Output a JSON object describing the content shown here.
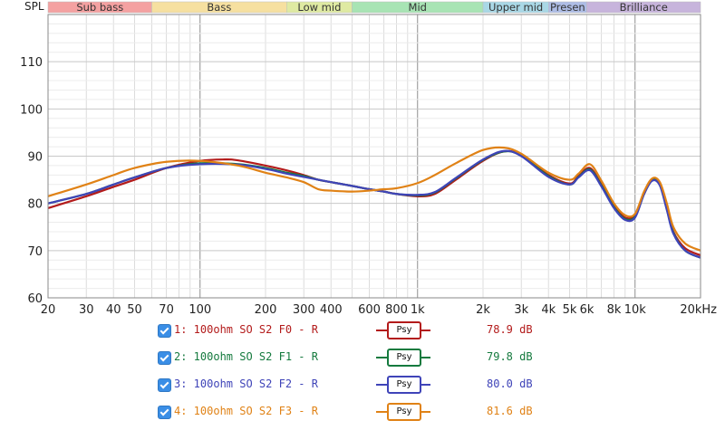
{
  "chart_data": {
    "type": "line",
    "ylabel": "SPL",
    "x_scale": "log",
    "xlim": [
      20,
      20000
    ],
    "ylim": [
      60,
      120
    ],
    "y_ticks": [
      60,
      70,
      80,
      90,
      100,
      110
    ],
    "x_ticks": [
      {
        "value": 20,
        "label": "20"
      },
      {
        "value": 30,
        "label": "30"
      },
      {
        "value": 40,
        "label": "40"
      },
      {
        "value": 50,
        "label": "50"
      },
      {
        "value": 70,
        "label": "70"
      },
      {
        "value": 100,
        "label": "100"
      },
      {
        "value": 200,
        "label": "200"
      },
      {
        "value": 300,
        "label": "300"
      },
      {
        "value": 400,
        "label": "400"
      },
      {
        "value": 600,
        "label": "600"
      },
      {
        "value": 800,
        "label": "800"
      },
      {
        "value": 1000,
        "label": "1k"
      },
      {
        "value": 2000,
        "label": "2k"
      },
      {
        "value": 3000,
        "label": "3k"
      },
      {
        "value": 4000,
        "label": "4k"
      },
      {
        "value": 5000,
        "label": "5k"
      },
      {
        "value": 6000,
        "label": "6k"
      },
      {
        "value": 8000,
        "label": "8k"
      },
      {
        "value": 10000,
        "label": "10k"
      },
      {
        "value": 20000,
        "label": "20kHz"
      }
    ],
    "bands": [
      {
        "label": "Sub bass",
        "from": 20,
        "to": 60,
        "color": "#f4a1a1"
      },
      {
        "label": "Bass",
        "from": 60,
        "to": 250,
        "color": "#f6e0a0"
      },
      {
        "label": "Low mid",
        "from": 250,
        "to": 500,
        "color": "#dfeaa2"
      },
      {
        "label": "Mid",
        "from": 500,
        "to": 2000,
        "color": "#a8e4b4"
      },
      {
        "label": "Upper mid",
        "from": 2000,
        "to": 4000,
        "color": "#a9d8e6"
      },
      {
        "label": "Presen",
        "from": 4000,
        "to": 6000,
        "color": "#aebde6"
      },
      {
        "label": "Brilliance",
        "from": 6000,
        "to": 20000,
        "color": "#c7b4dc"
      }
    ],
    "grid": true,
    "legend_position": "bottom",
    "series": [
      {
        "name": "1: 100ohm SO S2 F0 - R",
        "color": "#b31b1b",
        "level": "78.9 dB",
        "points": [
          [
            20,
            79
          ],
          [
            30,
            81.5
          ],
          [
            40,
            83.5
          ],
          [
            50,
            85
          ],
          [
            70,
            87.5
          ],
          [
            100,
            89
          ],
          [
            130,
            89.3
          ],
          [
            150,
            89.1
          ],
          [
            200,
            88
          ],
          [
            250,
            87
          ],
          [
            300,
            86
          ],
          [
            350,
            85
          ],
          [
            400,
            84.5
          ],
          [
            500,
            83.7
          ],
          [
            600,
            83
          ],
          [
            700,
            82.5
          ],
          [
            800,
            82
          ],
          [
            1000,
            81.5
          ],
          [
            1200,
            82
          ],
          [
            1500,
            85
          ],
          [
            2000,
            89
          ],
          [
            2500,
            91
          ],
          [
            3000,
            90.2
          ],
          [
            4000,
            86
          ],
          [
            5000,
            84.2
          ],
          [
            5500,
            85.8
          ],
          [
            6200,
            87.5
          ],
          [
            7000,
            84
          ],
          [
            8000,
            79.5
          ],
          [
            9000,
            77
          ],
          [
            10000,
            77.5
          ],
          [
            11000,
            82
          ],
          [
            12000,
            85
          ],
          [
            13000,
            84
          ],
          [
            14000,
            79
          ],
          [
            15000,
            74
          ],
          [
            17000,
            70.5
          ],
          [
            20000,
            69
          ]
        ]
      },
      {
        "name": "2: 100ohm SO S2 F1 - R",
        "color": "#157a3e",
        "level": "79.8 dB",
        "points": [
          [
            20,
            80
          ],
          [
            30,
            82
          ],
          [
            40,
            84
          ],
          [
            50,
            85.5
          ],
          [
            70,
            87.5
          ],
          [
            100,
            88.5
          ],
          [
            150,
            88.3
          ],
          [
            200,
            87.5
          ],
          [
            250,
            86.5
          ],
          [
            300,
            85.8
          ],
          [
            350,
            85
          ],
          [
            400,
            84.5
          ],
          [
            500,
            83.7
          ],
          [
            600,
            83
          ],
          [
            700,
            82.5
          ],
          [
            800,
            82
          ],
          [
            1000,
            81.7
          ],
          [
            1200,
            82.3
          ],
          [
            1500,
            85.3
          ],
          [
            2000,
            89.2
          ],
          [
            2500,
            91
          ],
          [
            3000,
            90.1
          ],
          [
            4000,
            85.8
          ],
          [
            5000,
            84
          ],
          [
            5500,
            85.6
          ],
          [
            6200,
            87.2
          ],
          [
            7000,
            83.8
          ],
          [
            8000,
            79.2
          ],
          [
            9000,
            76.7
          ],
          [
            10000,
            77.2
          ],
          [
            11000,
            82
          ],
          [
            12000,
            85
          ],
          [
            13000,
            84
          ],
          [
            14000,
            78.8
          ],
          [
            15000,
            73.8
          ],
          [
            17000,
            70
          ],
          [
            20000,
            68.5
          ]
        ]
      },
      {
        "name": "3: 100ohm SO S2 F2 - R",
        "color": "#3f44b8",
        "level": "80.0 dB",
        "points": [
          [
            20,
            80
          ],
          [
            30,
            82
          ],
          [
            40,
            84
          ],
          [
            50,
            85.5
          ],
          [
            70,
            87.5
          ],
          [
            100,
            88.3
          ],
          [
            150,
            88.2
          ],
          [
            200,
            87.3
          ],
          [
            250,
            86.3
          ],
          [
            300,
            85.6
          ],
          [
            350,
            85
          ],
          [
            400,
            84.5
          ],
          [
            500,
            83.7
          ],
          [
            600,
            83
          ],
          [
            700,
            82.5
          ],
          [
            800,
            82
          ],
          [
            1000,
            81.8
          ],
          [
            1200,
            82.4
          ],
          [
            1500,
            85.4
          ],
          [
            2000,
            89.3
          ],
          [
            2500,
            91.1
          ],
          [
            3000,
            90
          ],
          [
            4000,
            85.6
          ],
          [
            5000,
            84
          ],
          [
            5500,
            85.5
          ],
          [
            6200,
            87
          ],
          [
            7000,
            83.6
          ],
          [
            8000,
            79
          ],
          [
            9000,
            76.5
          ],
          [
            10000,
            77
          ],
          [
            11000,
            82
          ],
          [
            12000,
            84.8
          ],
          [
            13000,
            83.8
          ],
          [
            14000,
            78.6
          ],
          [
            15000,
            73.6
          ],
          [
            17000,
            70
          ],
          [
            20000,
            68.5
          ]
        ]
      },
      {
        "name": "4: 100ohm SO S2 F3 - R",
        "color": "#e08216",
        "level": "81.6 dB",
        "points": [
          [
            20,
            81.5
          ],
          [
            30,
            84
          ],
          [
            40,
            86
          ],
          [
            50,
            87.5
          ],
          [
            70,
            88.8
          ],
          [
            100,
            89
          ],
          [
            150,
            88
          ],
          [
            200,
            86.5
          ],
          [
            250,
            85.5
          ],
          [
            300,
            84.5
          ],
          [
            350,
            83
          ],
          [
            400,
            82.7
          ],
          [
            500,
            82.5
          ],
          [
            600,
            82.7
          ],
          [
            700,
            83
          ],
          [
            800,
            83.2
          ],
          [
            1000,
            84.3
          ],
          [
            1200,
            86
          ],
          [
            1500,
            88.5
          ],
          [
            2000,
            91.3
          ],
          [
            2500,
            91.8
          ],
          [
            3000,
            90.5
          ],
          [
            4000,
            86.5
          ],
          [
            5000,
            85
          ],
          [
            5500,
            86.3
          ],
          [
            6200,
            88.3
          ],
          [
            7000,
            84.8
          ],
          [
            8000,
            80
          ],
          [
            9000,
            77.5
          ],
          [
            10000,
            77.8
          ],
          [
            11000,
            82.5
          ],
          [
            12000,
            85.3
          ],
          [
            13000,
            84.5
          ],
          [
            14000,
            80
          ],
          [
            15000,
            75
          ],
          [
            17000,
            71.5
          ],
          [
            20000,
            70
          ]
        ]
      }
    ]
  },
  "legend": {
    "swatch_label": "Psy",
    "entries": [
      {
        "name": "1: 100ohm SO S2 F0 - R",
        "db": "78.9 dB",
        "color": "#b31b1b"
      },
      {
        "name": "2: 100ohm SO S2 F1 - R",
        "db": "79.8 dB",
        "color": "#157a3e"
      },
      {
        "name": "3: 100ohm SO S2 F2 - R",
        "db": "80.0 dB",
        "color": "#3f44b8"
      },
      {
        "name": "4: 100ohm SO S2 F3 - R",
        "db": "81.6 dB",
        "color": "#e08216"
      }
    ]
  }
}
